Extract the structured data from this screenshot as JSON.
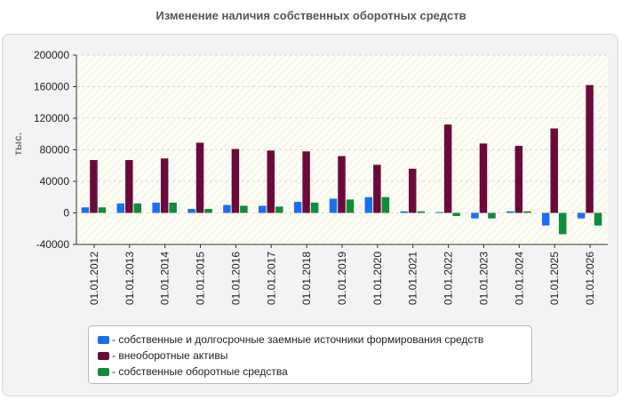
{
  "chart_data": {
    "type": "bar",
    "title": "Изменение наличия собственных оборотных средств",
    "ylabel": "тыс.",
    "xlabel": "",
    "ylim": [
      -40000,
      200000
    ],
    "yticks": [
      -40000,
      0,
      40000,
      80000,
      120000,
      160000,
      200000
    ],
    "ytick_labels": [
      "-40000",
      "0",
      "40000",
      "80000",
      "120000",
      "160000",
      "200000"
    ],
    "grid": true,
    "legend_position": "bottom",
    "categories": [
      "01.01.2012",
      "01.01.2013",
      "01.01.2014",
      "01.01.2015",
      "01.01.2016",
      "01.01.2017",
      "01.01.2018",
      "01.01.2019",
      "01.01.2020",
      "01.01.2021",
      "01.01.2022",
      "01.01.2023",
      "01.01.2024",
      "01.01.2025",
      "01.01.2026"
    ],
    "series": [
      {
        "name": "собственные и долгосрочные заемные источники формирования средств",
        "color": "#1a6ff0",
        "values": [
          7000,
          12000,
          13000,
          5000,
          10000,
          9000,
          14000,
          18000,
          20000,
          2000,
          1000,
          -7000,
          2000,
          -16000,
          -7000
        ]
      },
      {
        "name": "внеоборотные активы",
        "color": "#6b0a3a",
        "values": [
          67000,
          67000,
          69000,
          89000,
          81000,
          79000,
          78000,
          72000,
          61000,
          56000,
          112000,
          88000,
          85000,
          107000,
          162000
        ]
      },
      {
        "name": "собственные оборотные средства",
        "color": "#0e8c3a",
        "values": [
          7000,
          12000,
          13000,
          5000,
          9000,
          8000,
          13000,
          17000,
          20000,
          2000,
          -4000,
          -7000,
          2000,
          -27000,
          -16000
        ]
      }
    ]
  }
}
